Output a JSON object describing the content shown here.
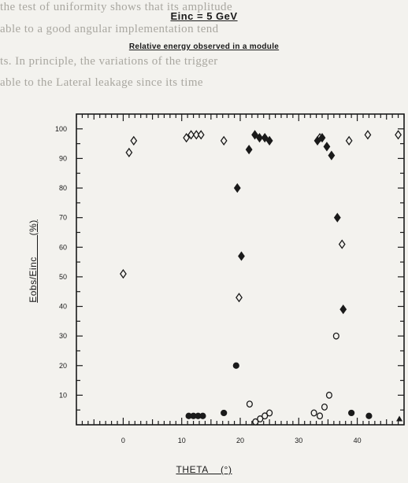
{
  "background_text": [
    "the test of uniformity shows that its amplitude",
    "able to a good angular implementation tend",
    "ts. In principle, the variations of the trigger",
    "able to the Lateral leakage since its time"
  ],
  "chart_data": {
    "type": "scatter",
    "title": "Einc = 5 GeV",
    "subtitle": "Relative energy observed in a module",
    "xlabel": "THETA    (°)",
    "ylabel": "Eobs/Einc       (%)",
    "xlim": [
      -8,
      48
    ],
    "ylim": [
      0,
      105
    ],
    "xticks": [
      0,
      10,
      20,
      30,
      40
    ],
    "yticks": [
      10,
      20,
      30,
      40,
      50,
      60,
      70,
      80,
      90,
      100
    ],
    "grid": false,
    "legend": "none",
    "series": [
      {
        "marker": "diamond-open",
        "points": [
          [
            0,
            51
          ],
          [
            1,
            92
          ],
          [
            1.8,
            96
          ],
          [
            10.8,
            97
          ],
          [
            11.6,
            98
          ],
          [
            12.5,
            98
          ],
          [
            13.3,
            98
          ],
          [
            17.2,
            96
          ],
          [
            19.8,
            43
          ],
          [
            33.6,
            97
          ],
          [
            37.4,
            61
          ],
          [
            38.6,
            96
          ],
          [
            41.8,
            98
          ],
          [
            47,
            98
          ]
        ]
      },
      {
        "marker": "diamond-filled",
        "points": [
          [
            19.5,
            80
          ],
          [
            20.2,
            57
          ],
          [
            21.5,
            93
          ],
          [
            22.5,
            98
          ],
          [
            23.3,
            97
          ],
          [
            24.2,
            97
          ],
          [
            25,
            96
          ],
          [
            33.2,
            96
          ],
          [
            34,
            97
          ],
          [
            34.8,
            94
          ],
          [
            35.6,
            91
          ],
          [
            36.6,
            70
          ],
          [
            37.6,
            39
          ]
        ]
      },
      {
        "marker": "circle-filled",
        "points": [
          [
            11.2,
            3
          ],
          [
            12,
            3
          ],
          [
            12.8,
            3
          ],
          [
            13.6,
            3
          ],
          [
            17.2,
            4
          ],
          [
            19.3,
            20
          ],
          [
            39,
            4
          ],
          [
            42,
            3
          ]
        ]
      },
      {
        "marker": "circle-open",
        "points": [
          [
            21.6,
            7
          ],
          [
            22.6,
            1
          ],
          [
            23.4,
            2
          ],
          [
            24.2,
            3
          ],
          [
            25,
            4
          ],
          [
            32.6,
            4
          ],
          [
            33.6,
            3
          ],
          [
            34.4,
            6
          ],
          [
            35.2,
            10
          ],
          [
            36.4,
            30
          ]
        ]
      },
      {
        "marker": "triangle-filled",
        "points": [
          [
            47.2,
            2
          ]
        ]
      }
    ]
  }
}
